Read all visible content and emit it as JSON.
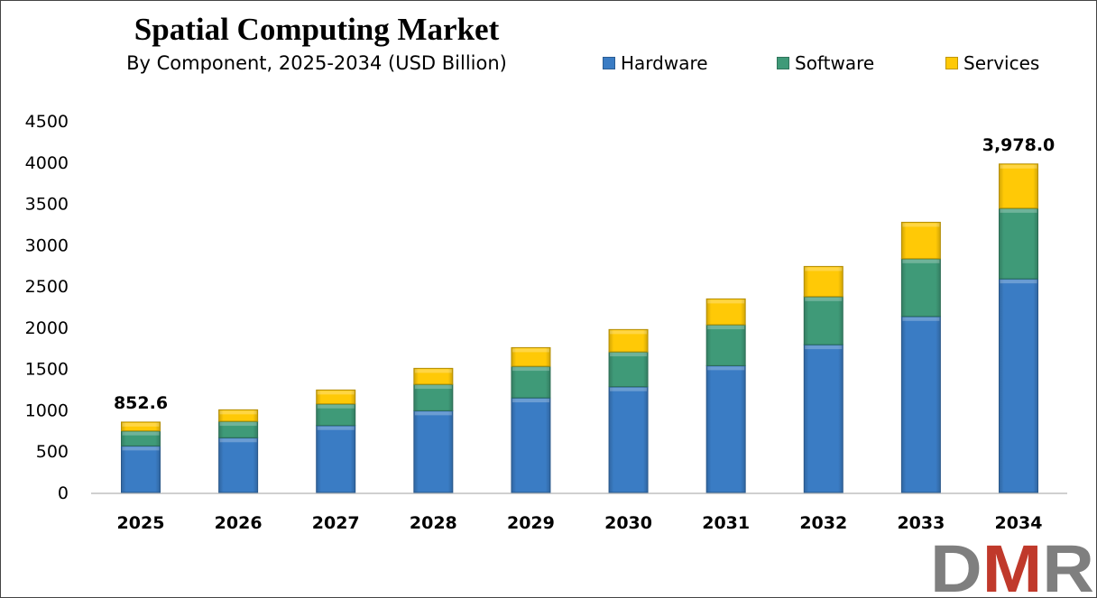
{
  "chart_data": {
    "type": "bar",
    "stacked": true,
    "title": "Spatial Computing Market",
    "subtitle": "By Component, 2025-2034 (USD Billion)",
    "xlabel": "",
    "ylabel": "",
    "ylim": [
      0,
      4500
    ],
    "yticks": [
      0,
      500,
      1000,
      1500,
      2000,
      2500,
      3000,
      3500,
      4000,
      4500
    ],
    "grid": false,
    "legend_position": "top-right",
    "categories": [
      "2025",
      "2026",
      "2027",
      "2028",
      "2029",
      "2030",
      "2031",
      "2032",
      "2033",
      "2034"
    ],
    "series": [
      {
        "name": "Hardware",
        "color": "#3a7cc4",
        "values": [
          564,
          663,
          811,
          990,
          1146,
          1281,
          1536,
          1790,
          2132,
          2587
        ]
      },
      {
        "name": "Software",
        "color": "#3f9a78",
        "values": [
          182,
          199,
          262,
          320,
          382,
          422,
          495,
          582,
          699,
          855
        ]
      },
      {
        "name": "Services",
        "color": "#ffc906",
        "values": [
          106.6,
          139,
          168,
          193,
          226,
          270,
          313,
          365,
          441,
          536
        ]
      }
    ],
    "annotations": [
      {
        "category": "2025",
        "text": "852.6"
      },
      {
        "category": "2034",
        "text": "3,978.0"
      }
    ]
  },
  "logo": {
    "text": "DMR",
    "colors": [
      "#7f7f7f",
      "#c0392b",
      "#7f7f7f"
    ]
  }
}
